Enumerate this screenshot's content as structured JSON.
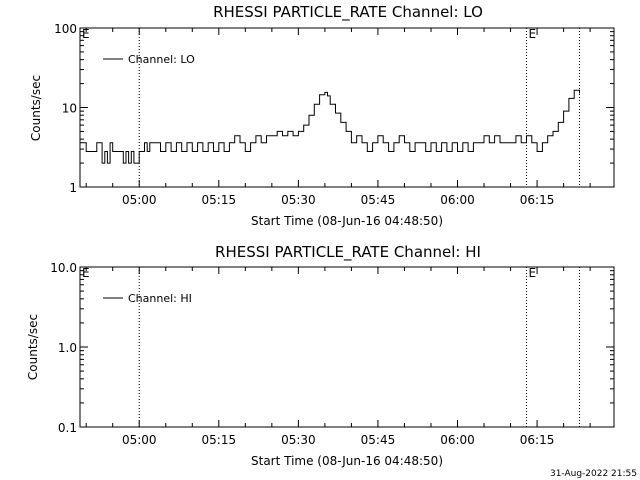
{
  "chart_data": [
    {
      "type": "line",
      "title": "RHESSI PARTICLE_RATE Channel: LO",
      "xlabel": "Start Time (08-Jun-16 04:48:50)",
      "ylabel": "Counts/sec",
      "y_scale": "log",
      "ylim": [
        1,
        100
      ],
      "xlim": [
        "04:48:50",
        "06:29:30"
      ],
      "x_tick_labels": [
        "05:00",
        "05:15",
        "05:30",
        "05:45",
        "06:00",
        "06:15"
      ],
      "y_tick_labels": [
        "1",
        "10",
        "100"
      ],
      "legend": {
        "placement": "top-left",
        "entries": [
          "Channel: LO"
        ]
      },
      "eclipse_marks": [
        "E",
        "E"
      ],
      "vertical_markers": [
        "05:00",
        "06:13",
        "06:23"
      ],
      "series": [
        {
          "name": "Channel: LO",
          "x": [
            "04:48:50",
            "04:50:00",
            "04:51:00",
            "04:52:00",
            "04:53:00",
            "04:53:30",
            "04:54:00",
            "04:54:30",
            "04:55:00",
            "04:56:00",
            "04:57:00",
            "04:57:30",
            "04:58:00",
            "04:58:30",
            "04:59:00",
            "05:00:00",
            "05:01:00",
            "05:01:30",
            "05:02:00",
            "05:03:00",
            "05:04:00",
            "05:05:00",
            "05:06:00",
            "05:07:00",
            "05:08:00",
            "05:09:00",
            "05:10:00",
            "05:11:00",
            "05:12:00",
            "05:13:00",
            "05:14:00",
            "05:15:00",
            "05:16:00",
            "05:17:00",
            "05:18:00",
            "05:19:00",
            "05:20:00",
            "05:21:00",
            "05:22:00",
            "05:23:00",
            "05:24:00",
            "05:25:00",
            "05:26:00",
            "05:27:00",
            "05:28:00",
            "05:29:00",
            "05:30:00",
            "05:31:00",
            "05:32:00",
            "05:33:00",
            "05:34:00",
            "05:35:00",
            "05:35:30",
            "05:36:00",
            "05:37:00",
            "05:38:00",
            "05:39:00",
            "05:40:00",
            "05:41:00",
            "05:42:00",
            "05:43:00",
            "05:44:00",
            "05:45:00",
            "05:46:00",
            "05:47:00",
            "05:48:00",
            "05:49:00",
            "05:50:00",
            "05:51:00",
            "05:52:00",
            "05:53:00",
            "05:54:00",
            "05:55:00",
            "05:56:00",
            "05:57:00",
            "05:58:00",
            "05:59:00",
            "06:00:00",
            "06:01:00",
            "06:02:00",
            "06:03:00",
            "06:04:00",
            "06:05:00",
            "06:06:00",
            "06:07:00",
            "06:08:00",
            "06:09:00",
            "06:10:00",
            "06:11:00",
            "06:12:00",
            "06:13:00",
            "06:14:00",
            "06:15:00",
            "06:16:00",
            "06:17:00",
            "06:18:00",
            "06:19:00",
            "06:20:00",
            "06:21:00",
            "06:22:00",
            "06:23:00"
          ],
          "y": [
            3.6,
            2.8,
            2.8,
            3.6,
            2.0,
            2.8,
            2.0,
            3.6,
            2.8,
            2.8,
            2.0,
            2.8,
            2.0,
            2.8,
            2.0,
            2.8,
            3.6,
            2.8,
            3.6,
            3.6,
            2.8,
            3.6,
            2.8,
            3.6,
            2.8,
            3.6,
            2.8,
            3.6,
            2.8,
            3.6,
            2.8,
            3.6,
            2.8,
            3.6,
            4.4,
            3.6,
            2.8,
            3.6,
            4.4,
            3.6,
            4.4,
            4.4,
            5.0,
            4.4,
            5.0,
            4.4,
            5.0,
            6.0,
            8.0,
            11.0,
            14.5,
            15.5,
            14.0,
            11.0,
            8.5,
            6.5,
            5.0,
            3.6,
            4.4,
            3.6,
            2.8,
            3.6,
            4.4,
            3.6,
            2.8,
            3.6,
            4.4,
            3.6,
            2.8,
            3.6,
            3.6,
            2.8,
            3.6,
            2.8,
            3.6,
            2.8,
            3.6,
            2.8,
            3.6,
            2.8,
            3.6,
            3.6,
            4.4,
            3.6,
            4.4,
            3.6,
            3.6,
            3.6,
            4.4,
            3.6,
            4.4,
            3.6,
            2.8,
            3.6,
            4.4,
            5.0,
            6.5,
            9.0,
            13.0,
            16.5,
            15.0
          ]
        }
      ]
    },
    {
      "type": "line",
      "title": "RHESSI PARTICLE_RATE Channel: HI",
      "xlabel": "Start Time (08-Jun-16 04:48:50)",
      "ylabel": "Counts/sec",
      "y_scale": "log",
      "ylim": [
        0.1,
        10
      ],
      "xlim": [
        "04:48:50",
        "06:29:30"
      ],
      "x_tick_labels": [
        "05:00",
        "05:15",
        "05:30",
        "05:45",
        "06:00",
        "06:15"
      ],
      "y_tick_labels": [
        "0.1",
        "1.0",
        "10.0"
      ],
      "legend": {
        "placement": "top-left",
        "entries": [
          "Channel: HI"
        ]
      },
      "eclipse_marks": [
        "E",
        "E"
      ],
      "vertical_markers": [
        "05:00",
        "06:13",
        "06:23"
      ],
      "series": [
        {
          "name": "Channel: HI",
          "x": [],
          "y": []
        }
      ]
    }
  ],
  "footer": {
    "timestamp": "31-Aug-2022 21:55"
  }
}
